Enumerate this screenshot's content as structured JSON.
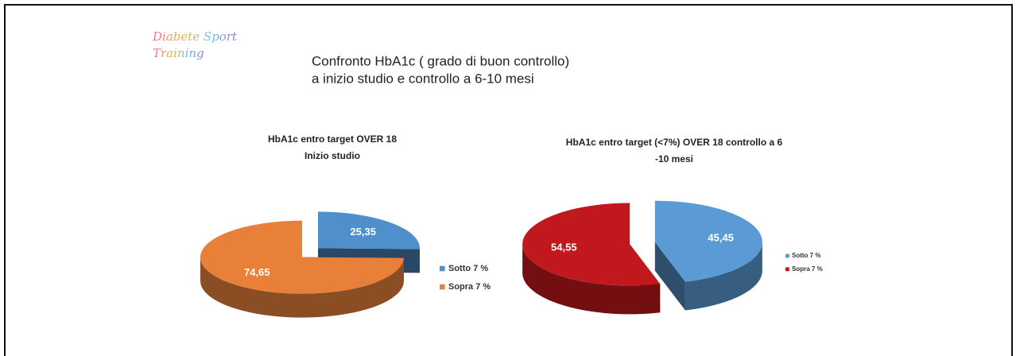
{
  "logo": [
    "Diabete Sport",
    "Training"
  ],
  "title": [
    "Confronto HbA1c ( grado di buon controllo)",
    "a inizio studio e controllo a 6-10 mesi"
  ],
  "chart_data": [
    {
      "type": "pie",
      "title": [
        "HbA1c  entro target OVER 18",
        "Inizio studio"
      ],
      "categories": [
        "Sotto  7 %",
        "Sopra  7 %"
      ],
      "values": [
        25.35,
        74.65
      ],
      "value_labels": [
        "25,35",
        "74,65"
      ],
      "colors": [
        "#4f8fcc",
        "#e8803a"
      ],
      "legend": "right",
      "exploded": true
    },
    {
      "type": "pie",
      "title": [
        "HbA1c entro target (<7%) OVER 18 controllo a 6",
        "-10 mesi"
      ],
      "categories": [
        "Sotto  7 %",
        "Sopra 7 %"
      ],
      "values": [
        45.45,
        54.55
      ],
      "value_labels": [
        "45,45",
        "54,55"
      ],
      "colors": [
        "#5b9bd5",
        "#c0181c"
      ],
      "legend": "right",
      "exploded": true
    }
  ]
}
